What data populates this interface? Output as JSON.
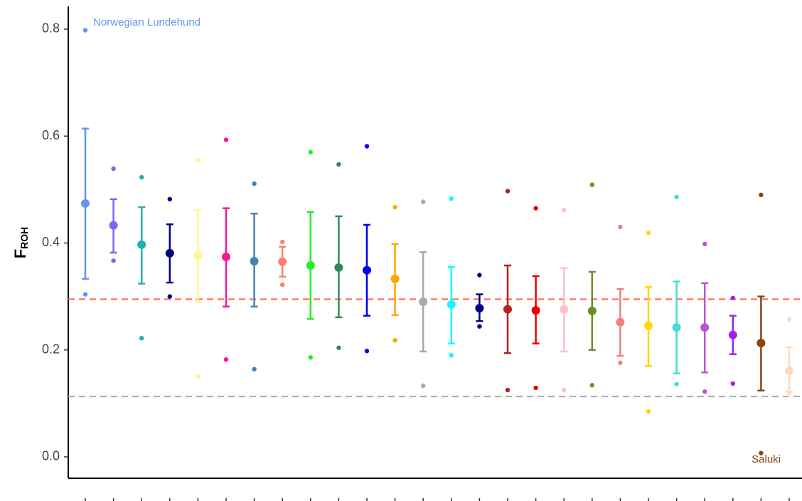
{
  "chart_data": {
    "type": "dot_errorbar",
    "y_label": "F",
    "y_label_sub": "ROH",
    "ylim": [
      -0.04,
      0.84
    ],
    "yticks": [
      {
        "value": 0,
        "label": "0.0"
      },
      0.2,
      0.4,
      0.6,
      0.8
    ],
    "categories": [
      null,
      null,
      null,
      null,
      null,
      null,
      null,
      null,
      null,
      null,
      null,
      null,
      null,
      null,
      null,
      null,
      null,
      null,
      null,
      null,
      null,
      null,
      null,
      null,
      null,
      null
    ],
    "groups": [
      {
        "color": "#6495ED",
        "mean": 0.474,
        "low": 0.333,
        "high": 0.614,
        "min": 0.304,
        "max": 0.798
      },
      {
        "color": "#7B68EE",
        "mean": 0.433,
        "low": 0.382,
        "high": 0.482,
        "min": 0.367,
        "max": 0.539
      },
      {
        "color": "#20B2AA",
        "mean": 0.397,
        "low": 0.324,
        "high": 0.467,
        "min": 0.222,
        "max": 0.523
      },
      {
        "color": "#000080",
        "mean": 0.381,
        "low": 0.326,
        "high": 0.435,
        "min": 0.3,
        "max": 0.482
      },
      {
        "color": "#FFF68F",
        "mean": 0.377,
        "low": 0.29,
        "high": 0.462,
        "min": 0.15,
        "max": 0.555
      },
      {
        "color": "#FF1493",
        "mean": 0.374,
        "low": 0.281,
        "high": 0.465,
        "min": 0.182,
        "max": 0.593
      },
      {
        "color": "#4682B4",
        "mean": 0.366,
        "low": 0.281,
        "high": 0.455,
        "min": 0.164,
        "max": 0.511
      },
      {
        "color": "#FA8072",
        "mean": 0.365,
        "low": 0.337,
        "high": 0.393,
        "min": 0.322,
        "max": 0.402
      },
      {
        "color": "#22EE22",
        "mean": 0.358,
        "low": 0.258,
        "high": 0.458,
        "min": 0.186,
        "max": 0.57
      },
      {
        "color": "#2E8B57",
        "mean": 0.354,
        "low": 0.261,
        "high": 0.45,
        "min": 0.204,
        "max": 0.547
      },
      {
        "color": "#0000EE",
        "mean": 0.349,
        "low": 0.264,
        "high": 0.434,
        "min": 0.198,
        "max": 0.581
      },
      {
        "color": "#FFA500",
        "mean": 0.333,
        "low": 0.265,
        "high": 0.398,
        "min": 0.218,
        "max": 0.467
      },
      {
        "color": "#A9A9A9",
        "mean": 0.29,
        "low": 0.197,
        "high": 0.383,
        "min": 0.133,
        "max": 0.477
      },
      {
        "color": "#00FFFF",
        "mean": 0.285,
        "low": 0.212,
        "high": 0.355,
        "min": 0.19,
        "max": 0.483
      },
      {
        "color": "#000080",
        "mean": 0.278,
        "low": 0.254,
        "high": 0.304,
        "min": 0.244,
        "max": 0.34
      },
      {
        "color": "#B22222",
        "mean": 0.276,
        "low": 0.194,
        "high": 0.358,
        "min": 0.125,
        "max": 0.497
      },
      {
        "color": "#EE0000",
        "mean": 0.274,
        "low": 0.212,
        "high": 0.338,
        "min": 0.129,
        "max": 0.465
      },
      {
        "color": "#FFC0CB",
        "mean": 0.276,
        "low": 0.197,
        "high": 0.353,
        "min": 0.125,
        "max": 0.462
      },
      {
        "color": "#6B8E23",
        "mean": 0.273,
        "low": 0.2,
        "high": 0.346,
        "min": 0.134,
        "max": 0.509
      },
      {
        "color": "#F08080",
        "mean": 0.252,
        "low": 0.189,
        "high": 0.314,
        "min": 0.176,
        "max": 0.43
      },
      {
        "color": "#FFD700",
        "mean": 0.245,
        "low": 0.17,
        "high": 0.318,
        "min": 0.085,
        "max": 0.419
      },
      {
        "color": "#40E0D0",
        "mean": 0.242,
        "low": 0.156,
        "high": 0.328,
        "min": 0.136,
        "max": 0.486
      },
      {
        "color": "#BA55D3",
        "mean": 0.242,
        "low": 0.158,
        "high": 0.325,
        "min": 0.122,
        "max": 0.398
      },
      {
        "color": "#A020F0",
        "mean": 0.228,
        "low": 0.192,
        "high": 0.264,
        "min": 0.137,
        "max": 0.297
      },
      {
        "color": "#8B4513",
        "mean": 0.213,
        "low": 0.124,
        "high": 0.3,
        "min": 0.007,
        "max": 0.49
      },
      {
        "color": "#FFDAB9",
        "mean": 0.161,
        "low": 0.122,
        "high": 0.205,
        "min": 0.12,
        "max": 0.257
      }
    ],
    "hlines": [
      {
        "value": 0.295,
        "color": "#FF6347"
      },
      {
        "value": 0.113,
        "color": "#AAAAAA"
      }
    ],
    "annotations": [
      {
        "text": "Norwegian Lundehund",
        "color": "#6495ED"
      },
      {
        "text": "Saluki",
        "color": "#8B4513"
      }
    ]
  }
}
